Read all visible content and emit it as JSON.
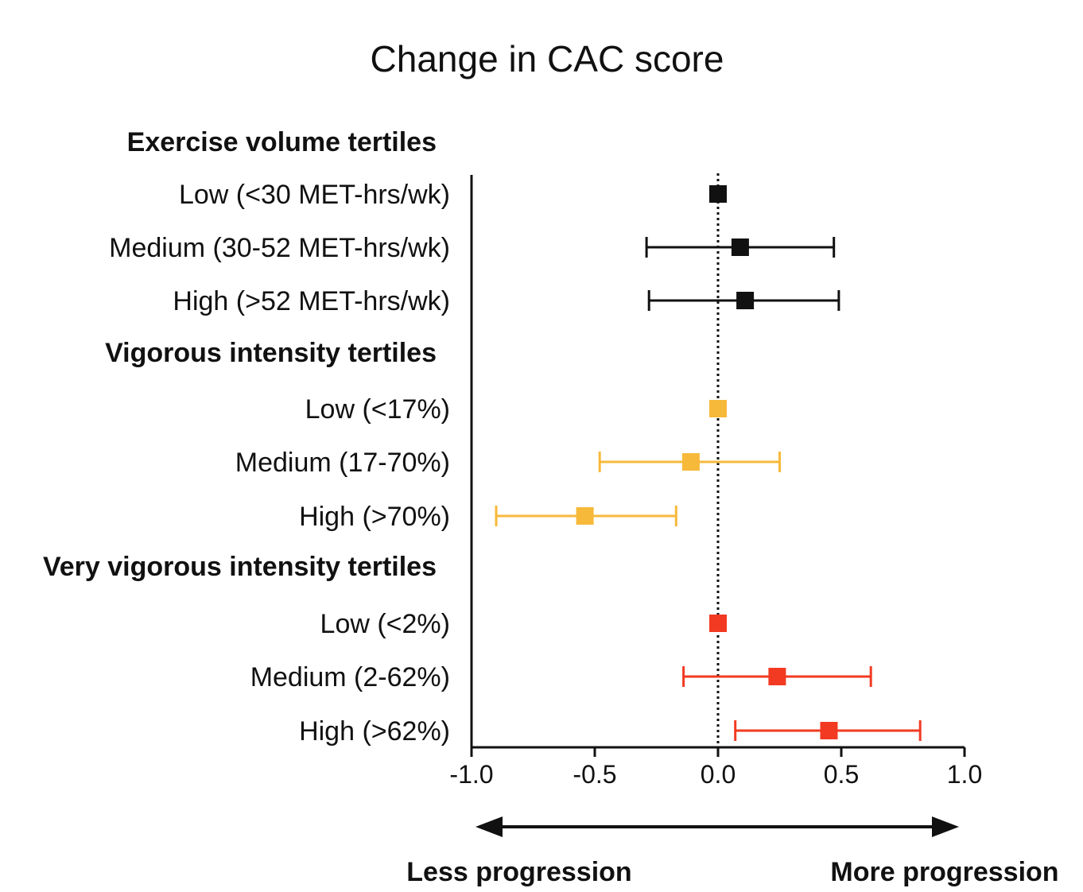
{
  "chart_data": {
    "type": "forest",
    "title": "Change in CAC score",
    "xlim": [
      -1.0,
      1.0
    ],
    "x_ticks": [
      "-1.0",
      "-0.5",
      "0.0",
      "0.5",
      "1.0"
    ],
    "x_tick_values": [
      -1.0,
      -0.5,
      0.0,
      0.5,
      1.0
    ],
    "reference_line": 0.0,
    "direction_labels": {
      "left": "Less progression",
      "right": "More progression"
    },
    "groups": [
      {
        "label": "Exercise volume tertiles",
        "color": "#111111",
        "rows": [
          {
            "label": "Low (<30 MET-hrs/wk)",
            "estimate": 0.0,
            "ci": null
          },
          {
            "label": "Medium (30-52 MET-hrs/wk)",
            "estimate": 0.09,
            "ci": [
              -0.29,
              0.47
            ]
          },
          {
            "label": "High (>52 MET-hrs/wk)",
            "estimate": 0.11,
            "ci": [
              -0.28,
              0.49
            ]
          }
        ]
      },
      {
        "label": "Vigorous intensity tertiles",
        "color": "#F7B93A",
        "rows": [
          {
            "label": "Low (<17%)",
            "estimate": 0.0,
            "ci": null
          },
          {
            "label": "Medium (17-70%)",
            "estimate": -0.11,
            "ci": [
              -0.48,
              0.25
            ]
          },
          {
            "label": "High (>70%)",
            "estimate": -0.54,
            "ci": [
              -0.9,
              -0.17
            ]
          }
        ]
      },
      {
        "label": "Very vigorous intensity tertiles",
        "color": "#F23A22",
        "rows": [
          {
            "label": "Low (<2%)",
            "estimate": 0.0,
            "ci": null
          },
          {
            "label": "Medium (2-62%)",
            "estimate": 0.24,
            "ci": [
              -0.14,
              0.62
            ]
          },
          {
            "label": "High (>62%)",
            "estimate": 0.45,
            "ci": [
              0.07,
              0.82
            ]
          }
        ]
      }
    ]
  }
}
